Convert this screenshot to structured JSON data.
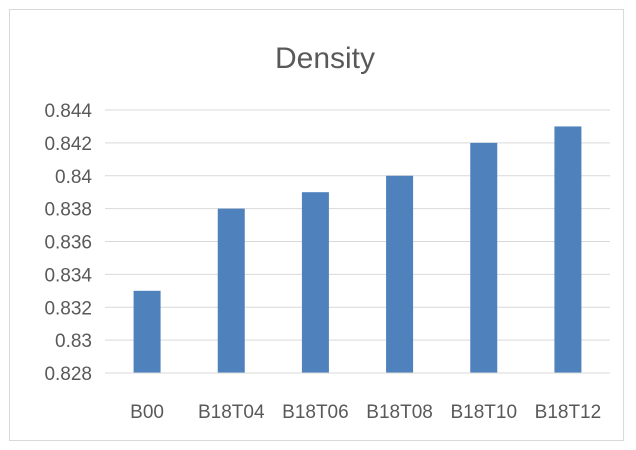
{
  "chart_data": {
    "type": "bar",
    "title": "Density",
    "xlabel": "",
    "ylabel": "",
    "categories": [
      "B00",
      "B18T04",
      "B18T06",
      "B18T08",
      "B18T10",
      "B18T12"
    ],
    "values": [
      0.833,
      0.838,
      0.839,
      0.84,
      0.842,
      0.843
    ],
    "ylim": [
      0.828,
      0.844
    ],
    "y_ticks": [
      "0.828",
      "0.83",
      "0.832",
      "0.834",
      "0.836",
      "0.838",
      "0.84",
      "0.842",
      "0.844"
    ],
    "grid": true,
    "bar_color": "#4f81bd",
    "grid_color": "#d9d9d9"
  }
}
